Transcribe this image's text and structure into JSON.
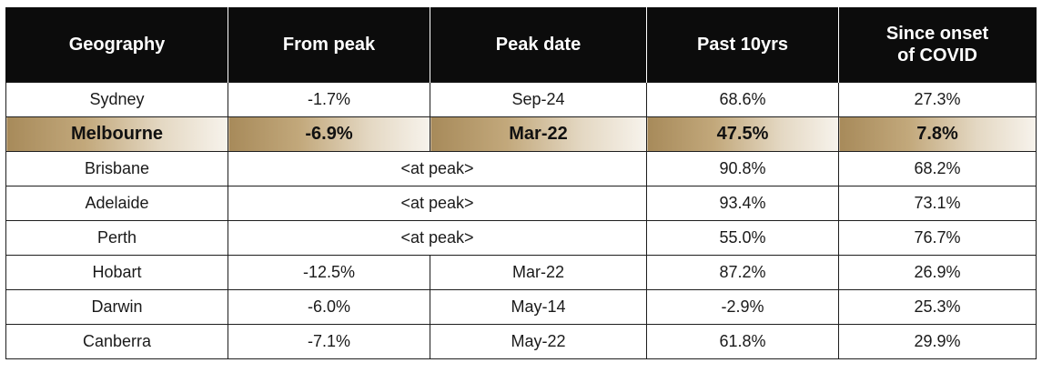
{
  "chart_data": {
    "type": "table",
    "columns": [
      "Geography",
      "From peak",
      "Peak date",
      "Past 10yrs",
      "Since onset of COVID"
    ],
    "header_lines": {
      "covid_line1": "Since onset",
      "covid_line2": "of COVID"
    },
    "rows": [
      {
        "geography": "Sydney",
        "from_peak": "-1.7%",
        "peak_date": "Sep-24",
        "at_peak": false,
        "past_10yrs": "68.6%",
        "since_covid": "27.3%",
        "highlight": false
      },
      {
        "geography": "Melbourne",
        "from_peak": "-6.9%",
        "peak_date": "Mar-22",
        "at_peak": false,
        "past_10yrs": "47.5%",
        "since_covid": "7.8%",
        "highlight": true
      },
      {
        "geography": "Brisbane",
        "from_peak": null,
        "peak_date": null,
        "at_peak": true,
        "past_10yrs": "90.8%",
        "since_covid": "68.2%",
        "highlight": false
      },
      {
        "geography": "Adelaide",
        "from_peak": null,
        "peak_date": null,
        "at_peak": true,
        "past_10yrs": "93.4%",
        "since_covid": "73.1%",
        "highlight": false
      },
      {
        "geography": "Perth",
        "from_peak": null,
        "peak_date": null,
        "at_peak": true,
        "past_10yrs": "55.0%",
        "since_covid": "76.7%",
        "highlight": false
      },
      {
        "geography": "Hobart",
        "from_peak": "-12.5%",
        "peak_date": "Mar-22",
        "at_peak": false,
        "past_10yrs": "87.2%",
        "since_covid": "26.9%",
        "highlight": false
      },
      {
        "geography": "Darwin",
        "from_peak": "-6.0%",
        "peak_date": "May-14",
        "at_peak": false,
        "past_10yrs": "-2.9%",
        "since_covid": "25.3%",
        "highlight": false
      },
      {
        "geography": "Canberra",
        "from_peak": "-7.1%",
        "peak_date": "May-22",
        "at_peak": false,
        "past_10yrs": "61.8%",
        "since_covid": "29.9%",
        "highlight": false
      }
    ],
    "at_peak_label": "<at peak>"
  },
  "colors": {
    "header_bg": "#0c0c0c",
    "header_text": "#ffffff",
    "highlight_gold": "#a78a5a",
    "highlight_fade": "#f7f3ec"
  }
}
